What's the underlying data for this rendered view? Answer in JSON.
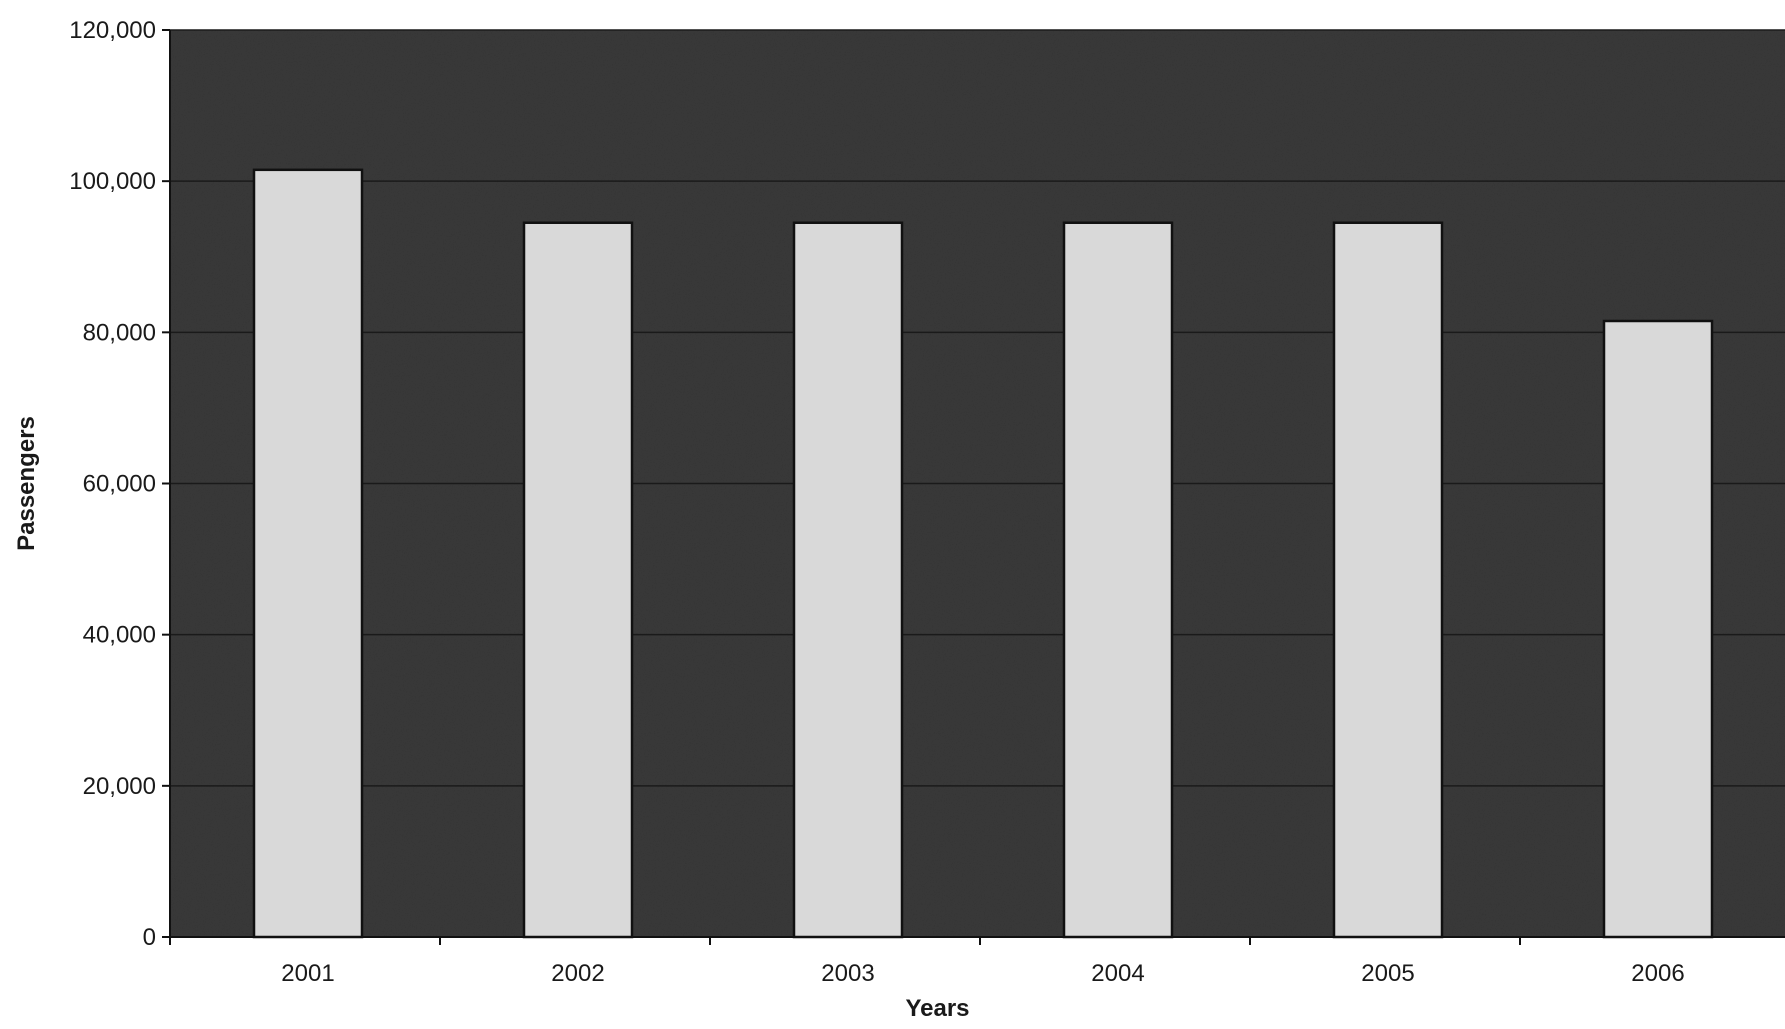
{
  "chart_data": {
    "type": "bar",
    "title": "",
    "xlabel": "Years",
    "ylabel": "Passengers",
    "categories": [
      "2001",
      "2002",
      "2003",
      "2004",
      "2005",
      "2006"
    ],
    "values": [
      101500,
      94500,
      94500,
      94500,
      94500,
      81500
    ],
    "ylim": [
      0,
      120000
    ],
    "yticks": [
      0,
      20000,
      40000,
      60000,
      80000,
      100000,
      120000
    ],
    "ytick_labels": [
      "0",
      "20,000",
      "40,000",
      "60,000",
      "80,000",
      "100,000",
      "120,000"
    ],
    "grid": true,
    "legend": "none",
    "colors": {
      "plot_background": "#3a3a3a",
      "bar_fill": "#d9d9d9",
      "bar_stroke": "#111111",
      "gridline": "#1a1a1a"
    }
  }
}
